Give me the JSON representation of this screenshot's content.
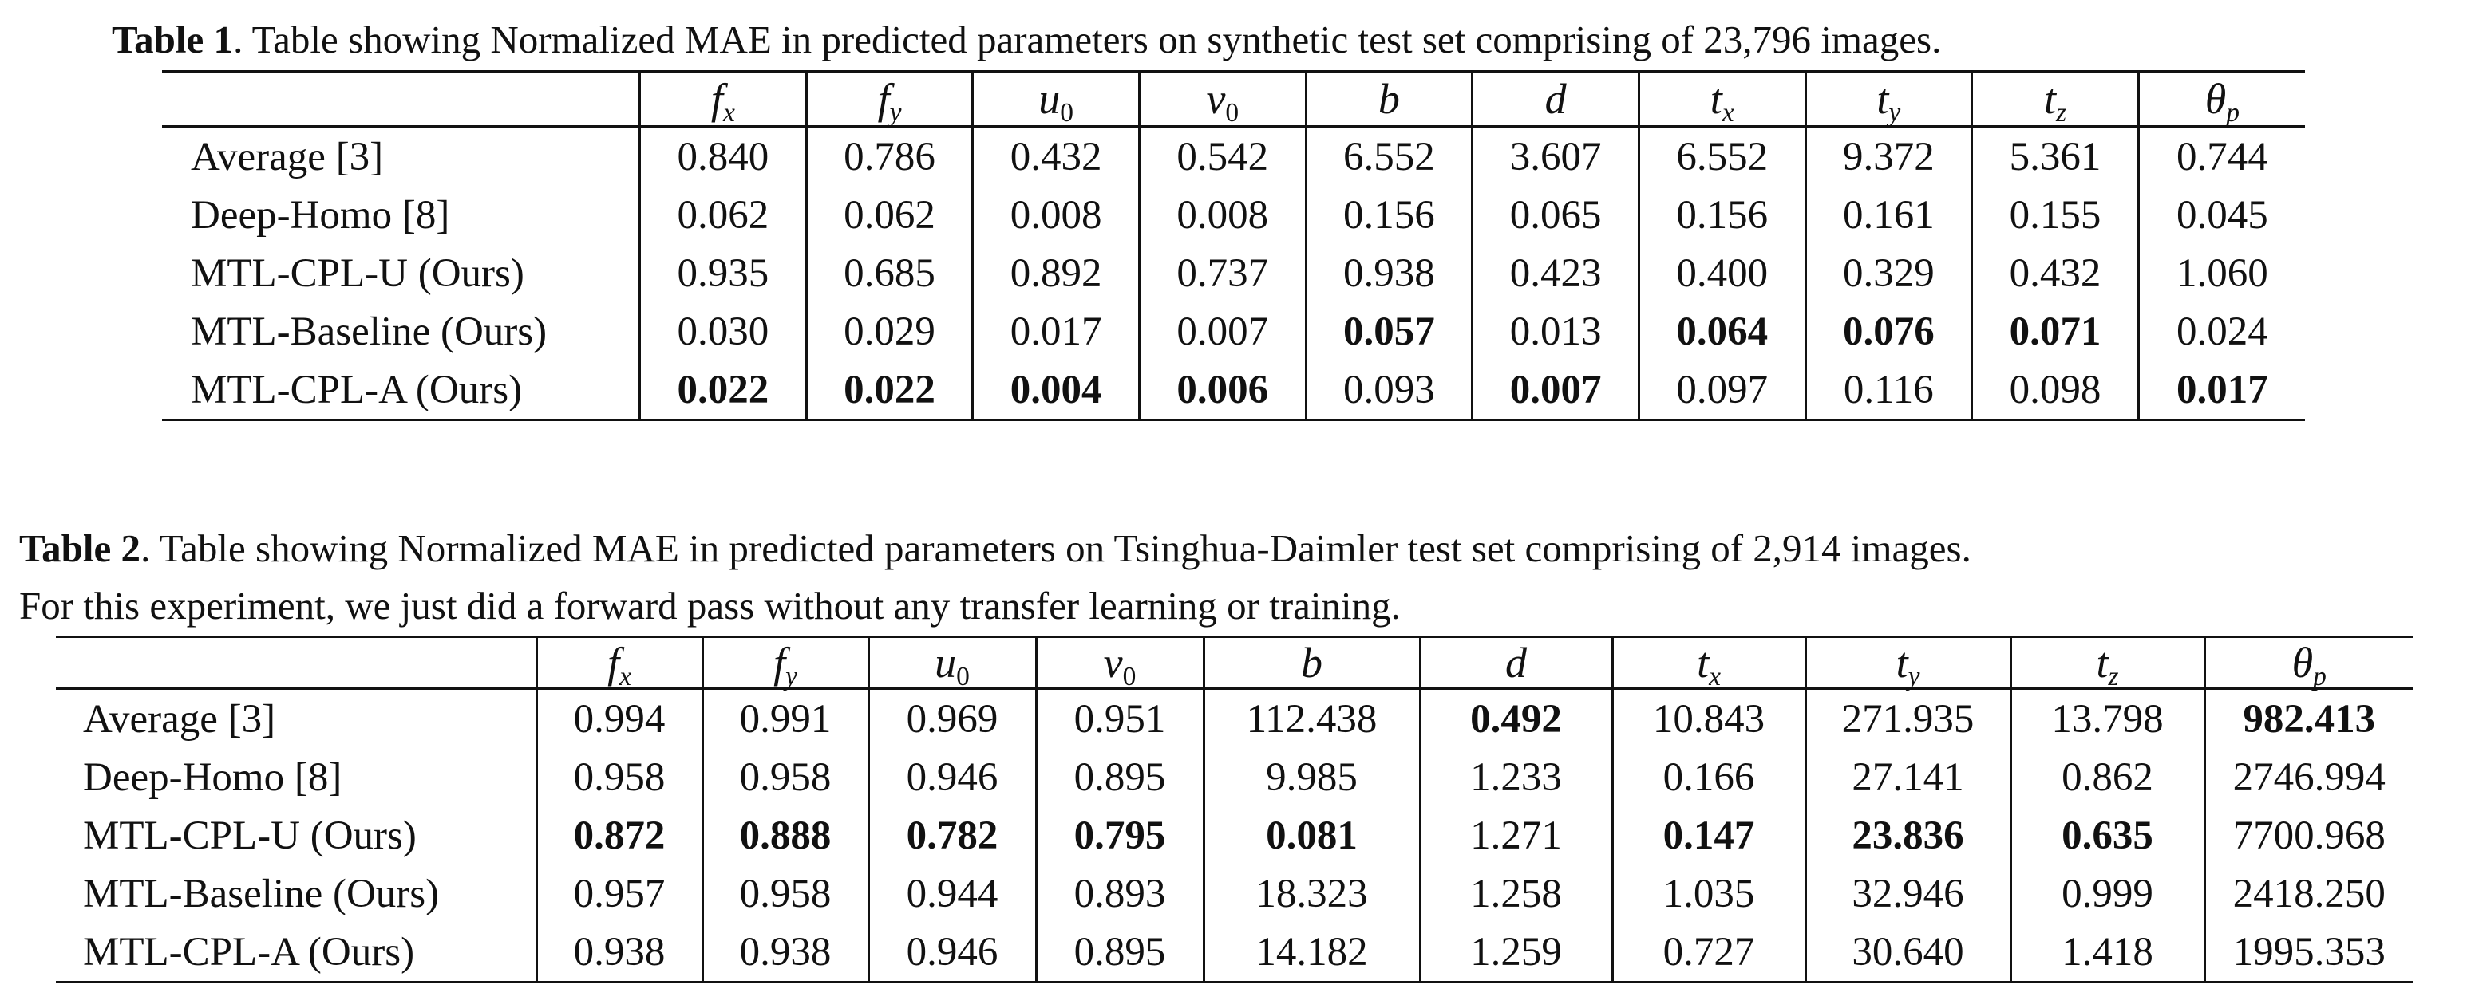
{
  "table1": {
    "label": "Table 1",
    "caption": ". Table showing Normalized MAE in predicted parameters on synthetic test set comprising of 23,796 images.",
    "headers": [
      {
        "base": "f",
        "sub": "x"
      },
      {
        "base": "f",
        "sub": "y"
      },
      {
        "base": "u",
        "sub": "0"
      },
      {
        "base": "v",
        "sub": "0"
      },
      {
        "base": "b",
        "sub": ""
      },
      {
        "base": "d",
        "sub": ""
      },
      {
        "base": "t",
        "sub": "x"
      },
      {
        "base": "t",
        "sub": "y"
      },
      {
        "base": "t",
        "sub": "z"
      },
      {
        "base": "θ",
        "sub": "p"
      }
    ],
    "rows": [
      {
        "method": "Average [3]",
        "values": [
          "0.840",
          "0.786",
          "0.432",
          "0.542",
          "6.552",
          "3.607",
          "6.552",
          "9.372",
          "5.361",
          "0.744"
        ],
        "bold": []
      },
      {
        "method": "Deep-Homo [8]",
        "values": [
          "0.062",
          "0.062",
          "0.008",
          "0.008",
          "0.156",
          "0.065",
          "0.156",
          "0.161",
          "0.155",
          "0.045"
        ],
        "bold": []
      },
      {
        "method": "MTL-CPL-U (Ours)",
        "values": [
          "0.935",
          "0.685",
          "0.892",
          "0.737",
          "0.938",
          "0.423",
          "0.400",
          "0.329",
          "0.432",
          "1.060"
        ],
        "bold": []
      },
      {
        "method": "MTL-Baseline (Ours)",
        "values": [
          "0.030",
          "0.029",
          "0.017",
          "0.007",
          "0.057",
          "0.013",
          "0.064",
          "0.076",
          "0.071",
          "0.024"
        ],
        "bold": [
          4,
          6,
          7,
          8
        ]
      },
      {
        "method": "MTL-CPL-A (Ours)",
        "values": [
          "0.022",
          "0.022",
          "0.004",
          "0.006",
          "0.093",
          "0.007",
          "0.097",
          "0.116",
          "0.098",
          "0.017"
        ],
        "bold": [
          0,
          1,
          2,
          3,
          5,
          9
        ]
      }
    ]
  },
  "table2": {
    "label": "Table 2",
    "caption_line1": ". Table showing Normalized MAE in predicted parameters on Tsinghua-Daimler test set comprising of 2,914 images.",
    "caption_line2": "For this experiment, we just did a forward pass without any transfer learning or training.",
    "headers": [
      {
        "base": "f",
        "sub": "x"
      },
      {
        "base": "f",
        "sub": "y"
      },
      {
        "base": "u",
        "sub": "0"
      },
      {
        "base": "v",
        "sub": "0"
      },
      {
        "base": "b",
        "sub": ""
      },
      {
        "base": "d",
        "sub": ""
      },
      {
        "base": "t",
        "sub": "x"
      },
      {
        "base": "t",
        "sub": "y"
      },
      {
        "base": "t",
        "sub": "z"
      },
      {
        "base": "θ",
        "sub": "p"
      }
    ],
    "rows": [
      {
        "method": "Average [3]",
        "values": [
          "0.994",
          "0.991",
          "0.969",
          "0.951",
          "112.438",
          "0.492",
          "10.843",
          "271.935",
          "13.798",
          "982.413"
        ],
        "bold": [
          5,
          9
        ]
      },
      {
        "method": "Deep-Homo [8]",
        "values": [
          "0.958",
          "0.958",
          "0.946",
          "0.895",
          "9.985",
          "1.233",
          "0.166",
          "27.141",
          "0.862",
          "2746.994"
        ],
        "bold": []
      },
      {
        "method": "MTL-CPL-U (Ours)",
        "values": [
          "0.872",
          "0.888",
          "0.782",
          "0.795",
          "0.081",
          "1.271",
          "0.147",
          "23.836",
          "0.635",
          "7700.968"
        ],
        "bold": [
          0,
          1,
          2,
          3,
          4,
          6,
          7,
          8
        ]
      },
      {
        "method": "MTL-Baseline (Ours)",
        "values": [
          "0.957",
          "0.958",
          "0.944",
          "0.893",
          "18.323",
          "1.258",
          "1.035",
          "32.946",
          "0.999",
          "2418.250"
        ],
        "bold": []
      },
      {
        "method": "MTL-CPL-A (Ours)",
        "values": [
          "0.938",
          "0.938",
          "0.946",
          "0.895",
          "14.182",
          "1.259",
          "0.727",
          "30.640",
          "1.418",
          "1995.353"
        ],
        "bold": []
      }
    ]
  }
}
